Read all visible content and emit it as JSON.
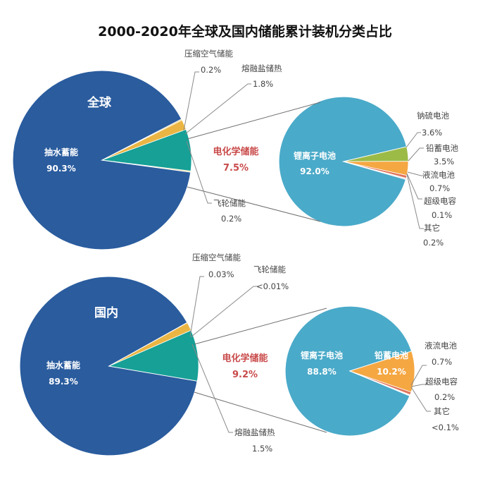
{
  "title": "2000-2020年全球及国内储能累计装机分类占比",
  "colors": {
    "pumped_hydro": "#2a5c9e",
    "electrochemical": "#16a096",
    "compressed_air": "#f1c04a",
    "molten_salt": "#eab543",
    "flywheel": "#e6d58a",
    "lithium_ion": "#4aaac9",
    "sodium_sulfur": "#9bbb46",
    "lead_acid": "#f5a742",
    "flow_battery": "#e2735a",
    "supercapacitor": "#d9d9d9",
    "other": "#b0b0b0",
    "highlight_text": "#c94a4a"
  },
  "chart_data": [
    {
      "type": "pie",
      "title": "全球",
      "group": "main",
      "slices": [
        {
          "name": "抽水蓄能",
          "value": 90.3,
          "label": "90.3%",
          "color_key": "pumped_hydro"
        },
        {
          "name": "压缩空气储能",
          "value": 0.2,
          "label": "0.2%",
          "color_key": "compressed_air"
        },
        {
          "name": "熔融盐储热",
          "value": 1.8,
          "label": "1.8%",
          "color_key": "molten_salt"
        },
        {
          "name": "电化学储能",
          "value": 7.5,
          "label": "7.5%",
          "color_key": "electrochemical"
        },
        {
          "name": "飞轮储能",
          "value": 0.2,
          "label": "0.2%",
          "color_key": "flywheel"
        }
      ]
    },
    {
      "type": "pie",
      "title": "全球 电化学储能",
      "group": "breakdown",
      "slices": [
        {
          "name": "锂离子电池",
          "value": 92.0,
          "label": "92.0%",
          "color_key": "lithium_ion"
        },
        {
          "name": "钠硫电池",
          "value": 3.6,
          "label": "3.6%",
          "color_key": "sodium_sulfur"
        },
        {
          "name": "铅蓄电池",
          "value": 3.5,
          "label": "3.5%",
          "color_key": "lead_acid"
        },
        {
          "name": "液流电池",
          "value": 0.7,
          "label": "0.7%",
          "color_key": "flow_battery"
        },
        {
          "name": "超级电容",
          "value": 0.1,
          "label": "0.1%",
          "color_key": "supercapacitor"
        },
        {
          "name": "其它",
          "value": 0.2,
          "label": "0.2%",
          "color_key": "other"
        }
      ]
    },
    {
      "type": "pie",
      "title": "国内",
      "group": "main",
      "slices": [
        {
          "name": "抽水蓄能",
          "value": 89.3,
          "label": "89.3%",
          "color_key": "pumped_hydro"
        },
        {
          "name": "压缩空气储能",
          "value": 0.03,
          "label": "0.03%",
          "color_key": "compressed_air"
        },
        {
          "name": "飞轮储能",
          "value": 0.005,
          "label": "<0.01%",
          "color_key": "flywheel"
        },
        {
          "name": "熔融盐储热",
          "value": 1.5,
          "label": "1.5%",
          "color_key": "molten_salt"
        },
        {
          "name": "电化学储能",
          "value": 9.2,
          "label": "9.2%",
          "color_key": "electrochemical"
        }
      ]
    },
    {
      "type": "pie",
      "title": "国内 电化学储能",
      "group": "breakdown",
      "slices": [
        {
          "name": "锂离子电池",
          "value": 88.8,
          "label": "88.8%",
          "color_key": "lithium_ion"
        },
        {
          "name": "铅蓄电池",
          "value": 10.2,
          "label": "10.2%",
          "color_key": "lead_acid"
        },
        {
          "name": "液流电池",
          "value": 0.7,
          "label": "0.7%",
          "color_key": "flow_battery"
        },
        {
          "name": "超级电容",
          "value": 0.2,
          "label": "0.2%",
          "color_key": "supercapacitor"
        },
        {
          "name": "其它",
          "value": 0.05,
          "label": "<0.1%",
          "color_key": "other"
        }
      ]
    }
  ],
  "labels": {
    "global": {
      "region": "全球",
      "pumped_name": "抽水蓄能",
      "pumped_value": "90.3%",
      "echem_name": "电化学储能",
      "echem_value": "7.5%",
      "caes_name": "压缩空气储能",
      "caes_value": "0.2%",
      "salt_name": "熔融盐储热",
      "salt_value": "1.8%",
      "fly_name": "飞轮储能",
      "fly_value": "0.2%",
      "li_name": "锂离子电池",
      "li_value": "92.0%",
      "nas_name": "钠硫电池",
      "nas_value": "3.6%",
      "pb_name": "铅蓄电池",
      "pb_value": "3.5%",
      "flow_name": "液流电池",
      "flow_value": "0.7%",
      "cap_name": "超级电容",
      "cap_value": "0.1%",
      "other_name": "其它",
      "other_value": "0.2%"
    },
    "domestic": {
      "region": "国内",
      "pumped_name": "抽水蓄能",
      "pumped_value": "89.3%",
      "echem_name": "电化学储能",
      "echem_value": "9.2%",
      "caes_name": "压缩空气储能",
      "caes_value": "0.03%",
      "fly_name": "飞轮储能",
      "fly_value": "<0.01%",
      "salt_name": "熔融盐储热",
      "salt_value": "1.5%",
      "li_name": "锂离子电池",
      "li_value": "88.8%",
      "pb_name": "铅蓄电池",
      "pb_value": "10.2%",
      "flow_name": "液流电池",
      "flow_value": "0.7%",
      "cap_name": "超级电容",
      "cap_value": "0.2%",
      "other_name": "其它",
      "other_value": "<0.1%"
    }
  }
}
